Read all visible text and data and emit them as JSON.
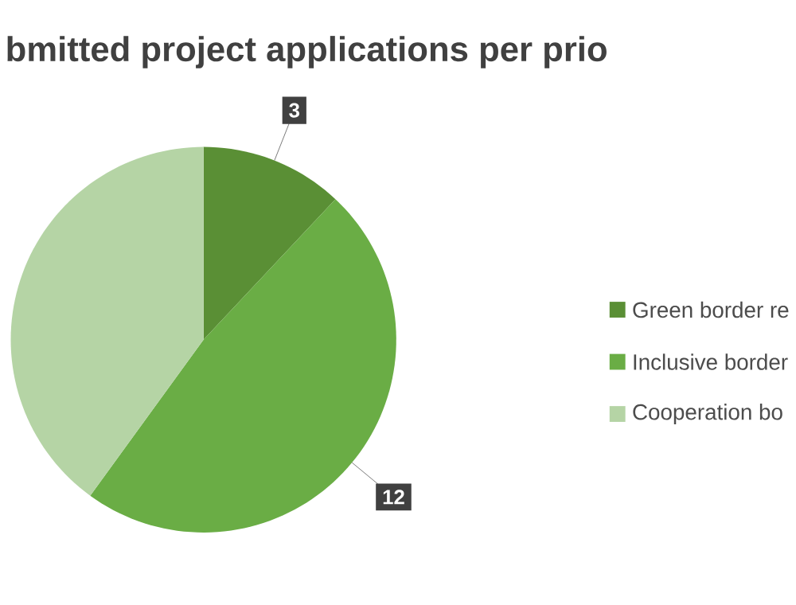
{
  "chart_data": {
    "type": "pie",
    "title": "bmitted project applications per prio",
    "categories": [
      "Green border re",
      "Inclusive border",
      "Cooperation bo"
    ],
    "values": [
      3,
      12,
      10
    ],
    "colors": [
      "#5a8f35",
      "#6aad45",
      "#b5d4a5"
    ],
    "value_labels": [
      "3",
      "12",
      null
    ],
    "legend": "right"
  }
}
